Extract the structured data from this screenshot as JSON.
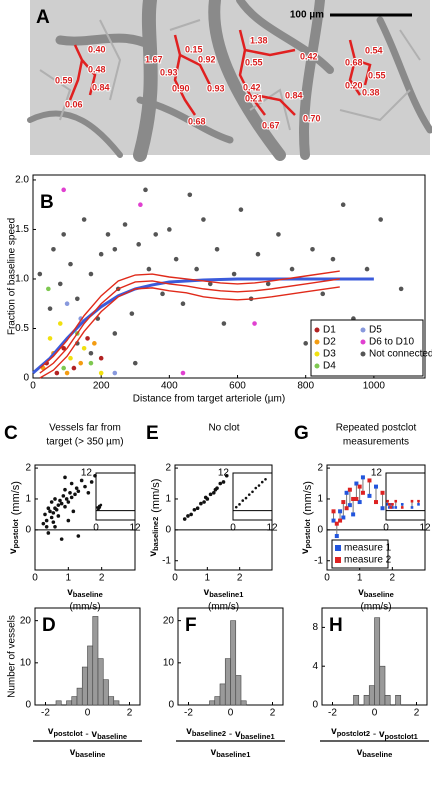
{
  "image_panel": {
    "panel": "A",
    "scale_bar": "100 µm",
    "annotations": [
      "0.40",
      "0.48",
      "0.59",
      "0.84",
      "0.06",
      "1.67",
      "0.15",
      "0.92",
      "0.93",
      "0.90",
      "0.93",
      "0.68",
      "1.38",
      "0.55",
      "0.42",
      "0.42",
      "0.21",
      "0.84",
      "0.67",
      "0.70",
      "0.54",
      "0.68",
      "0.55",
      "0.20",
      "0.38"
    ]
  },
  "chart_data": [
    {
      "type": "scatter",
      "panel": "B",
      "ylabel": "Fraction of baseline speed",
      "xlabel": "Distance from target arteriole (µm)",
      "xlim": [
        0,
        1150
      ],
      "ylim": [
        0,
        2.05
      ],
      "xticks": [
        0,
        200,
        400,
        600,
        800,
        1000
      ],
      "yticks": [
        0,
        0.5,
        {
          "value": 1,
          "label": "1.0"
        },
        1.5,
        {
          "value": 2,
          "label": "2.0"
        }
      ],
      "legend": "lower right",
      "series": [
        {
          "name": "D1",
          "color": "#b22222",
          "x": [
            40,
            70,
            90,
            120,
            160,
            200
          ],
          "values": [
            0.15,
            0.05,
            0.3,
            0.1,
            0.4,
            0.2
          ]
        },
        {
          "name": "D2",
          "color": "#f39c12",
          "x": [
            30,
            60,
            100,
            140,
            180
          ],
          "values": [
            0.1,
            0.25,
            0.05,
            0.15,
            0.35
          ]
        },
        {
          "name": "D3",
          "color": "#f1e00f",
          "x": [
            50,
            80,
            110,
            150,
            200
          ],
          "values": [
            0.4,
            0.55,
            0.2,
            0.3,
            0.05
          ]
        },
        {
          "name": "D4",
          "color": "#7ec850",
          "x": [
            45,
            90,
            130,
            170
          ],
          "values": [
            0.9,
            0.1,
            0.45,
            0.15
          ]
        },
        {
          "name": "D5",
          "color": "#8899dd",
          "x": [
            100,
            140,
            240
          ],
          "values": [
            0.75,
            0.6,
            0.05
          ]
        },
        {
          "name": "D6 to D10",
          "color": "#e040d0",
          "x": [
            90,
            315,
            440,
            650
          ],
          "values": [
            1.9,
            1.75,
            0.05,
            0.55
          ]
        },
        {
          "name": "Not connected",
          "color": "#555555",
          "x": [
            20,
            50,
            60,
            80,
            90,
            110,
            130,
            150,
            170,
            190,
            200,
            220,
            240,
            250,
            270,
            290,
            310,
            330,
            340,
            360,
            380,
            400,
            420,
            440,
            460,
            480,
            500,
            520,
            540,
            560,
            590,
            610,
            640,
            660,
            690,
            720,
            760,
            800,
            820,
            850,
            880,
            910,
            940,
            980,
            1020,
            1080,
            130,
            170,
            240,
            300
          ],
          "values": [
            1.05,
            0.7,
            1.3,
            0.95,
            1.45,
            1.15,
            0.8,
            1.6,
            1.05,
            0.6,
            1.25,
            1.45,
            1.3,
            0.9,
            1.55,
            0.65,
            1.35,
            1.9,
            1.1,
            1.45,
            0.85,
            1.5,
            1.2,
            0.75,
            1.85,
            1.1,
            1.6,
            0.95,
            1.3,
            0.55,
            1.05,
            1.7,
            0.8,
            1.25,
            0.95,
            1.45,
            1.1,
            0.35,
            1.3,
            0.85,
            1.2,
            1.75,
            0.6,
            1.1,
            1.6,
            0.9,
            0.35,
            0.25,
            0.45,
            0.15
          ]
        }
      ],
      "trend_lines": [
        {
          "color": "#3b5bdb",
          "x": [
            0,
            50,
            100,
            150,
            200,
            250,
            300,
            350,
            400,
            500,
            600,
            800,
            1000
          ],
          "values": [
            0.05,
            0.2,
            0.4,
            0.58,
            0.72,
            0.83,
            0.9,
            0.94,
            0.97,
            0.99,
            1.0,
            1.0,
            1.0
          ]
        },
        {
          "color": "#e02a1a",
          "x": [
            20,
            60,
            100,
            150,
            200,
            250,
            300,
            350,
            400,
            450,
            500,
            550,
            600,
            650,
            700,
            800,
            900
          ],
          "values": [
            0.05,
            0.15,
            0.3,
            0.55,
            0.75,
            0.9,
            0.97,
            0.98,
            0.95,
            0.93,
            0.9,
            0.88,
            0.87,
            0.88,
            0.9,
            0.95,
            1.0
          ]
        },
        {
          "color": "#e02a1a",
          "x": [
            20,
            60,
            100,
            150,
            200,
            250,
            300,
            350,
            400,
            450,
            500,
            550,
            600,
            650,
            700,
            800,
            900
          ],
          "values": [
            0.1,
            0.22,
            0.38,
            0.63,
            0.83,
            0.98,
            1.04,
            1.05,
            1.02,
            1.0,
            0.98,
            0.96,
            0.95,
            0.96,
            0.98,
            1.03,
            1.08
          ]
        },
        {
          "color": "#e02a1a",
          "x": [
            20,
            60,
            100,
            150,
            200,
            250,
            300,
            350,
            400,
            450,
            500,
            550,
            600,
            650,
            700,
            800,
            900
          ],
          "values": [
            0.0,
            0.08,
            0.22,
            0.47,
            0.67,
            0.82,
            0.9,
            0.91,
            0.88,
            0.86,
            0.82,
            0.8,
            0.79,
            0.8,
            0.82,
            0.87,
            0.92
          ]
        }
      ]
    },
    {
      "type": "scatter",
      "panel": "C",
      "title": [
        "Vessels far from",
        "target (> 350 µm)"
      ],
      "ylabel": {
        "parts": [
          {
            "text": "v",
            "sub": "postclot"
          }
        ],
        "unit": "(mm/s)"
      },
      "xlabel": {
        "parts": [
          {
            "text": "v",
            "sub": "baseline"
          }
        ],
        "unit": "(mm/s)"
      },
      "xlim": [
        0,
        3
      ],
      "ylim": [
        -1.3,
        2.1
      ],
      "xticks": [
        0,
        1,
        2
      ],
      "yticks": [
        0,
        1,
        2
      ],
      "series": [
        {
          "color": "#111111",
          "x": [
            0.25,
            0.3,
            0.35,
            0.4,
            0.45,
            0.5,
            0.5,
            0.55,
            0.6,
            0.6,
            0.65,
            0.7,
            0.7,
            0.75,
            0.8,
            0.85,
            0.9,
            0.9,
            0.95,
            1.0,
            1.05,
            1.1,
            1.1,
            1.2,
            1.25,
            1.3,
            1.4,
            1.5,
            1.6,
            1.7,
            1.8,
            0.4,
            0.6,
            0.8,
            1.0,
            1.3,
            0.35,
            0.55,
            0.9,
            1.15
          ],
          "values": [
            0.2,
            0.5,
            0.3,
            0.7,
            0.6,
            0.4,
            0.9,
            0.55,
            0.7,
            1.0,
            0.65,
            0.8,
            0.45,
            0.95,
            0.85,
            1.1,
            0.75,
            1.3,
            1.0,
            0.9,
            1.2,
            1.05,
            1.5,
            1.15,
            1.35,
            1.25,
            1.6,
            1.4,
            1.2,
            1.55,
            1.75,
            -0.1,
            0.1,
            -0.3,
            0.3,
            -0.2,
            0.1,
            0.25,
            1.7,
            0.6
          ]
        }
      ],
      "inset": {
        "xlim": [
          0,
          12
        ],
        "ylim": [
          -3,
          12
        ],
        "xticks": [
          0,
          12
        ],
        "yticks": [
          12
        ],
        "series": [
          {
            "color": "#111111",
            "x": [
              0.5,
              0.8,
              1,
              1.2,
              1.5,
              0.7,
              1.1
            ],
            "values": [
              1,
              0.6,
              1.5,
              1.2,
              1.8,
              0.3,
              0.9
            ]
          }
        ]
      }
    },
    {
      "type": "scatter",
      "panel": "E",
      "title": [
        "No clot"
      ],
      "ylabel": {
        "parts": [
          {
            "text": "v",
            "sub": "baseline2"
          }
        ],
        "unit": "(mm/s)"
      },
      "xlabel": {
        "parts": [
          {
            "text": "v",
            "sub": "baseline1"
          }
        ],
        "unit": "(mm/s)"
      },
      "xlim": [
        0,
        3
      ],
      "ylim": [
        -1.3,
        2.1
      ],
      "xticks": [
        0,
        1,
        2
      ],
      "yticks": [
        -1,
        0,
        1,
        2
      ],
      "series": [
        {
          "color": "#111111",
          "x": [
            0.3,
            0.5,
            0.6,
            0.7,
            0.8,
            0.9,
            1.0,
            1.1,
            1.2,
            1.3,
            1.4,
            1.5,
            1.6,
            0.4,
            0.95,
            1.25
          ],
          "values": [
            0.35,
            0.5,
            0.65,
            0.7,
            0.85,
            0.9,
            1.0,
            1.15,
            1.2,
            1.35,
            1.5,
            1.55,
            1.75,
            0.45,
            1.05,
            1.3
          ]
        }
      ],
      "inset": {
        "xlim": [
          0,
          12
        ],
        "ylim": [
          -3,
          12
        ],
        "xticks": [
          0,
          12
        ],
        "yticks": [
          12
        ],
        "series": [
          {
            "color": "#111111",
            "x": [
              1,
              2,
              3,
              4,
              5,
              6,
              7,
              8,
              9,
              10
            ],
            "values": [
              1.1,
              2,
              3.2,
              4,
              5.1,
              6,
              7.2,
              8,
              9.1,
              10
            ]
          }
        ]
      }
    },
    {
      "type": "paired",
      "panel": "G",
      "title": [
        "Repeated postclot",
        "measurements"
      ],
      "ylabel": {
        "parts": [
          {
            "text": "v",
            "sub": "postclot"
          }
        ],
        "unit": "(mm/s)"
      },
      "xlabel": {
        "parts": [
          {
            "text": "v",
            "sub": "baseline"
          }
        ],
        "unit": "(mm/s)"
      },
      "xlim": [
        0,
        3
      ],
      "ylim": [
        -1.3,
        2.1
      ],
      "xticks": [
        0,
        1,
        2
      ],
      "yticks": [
        -1,
        0,
        1,
        2
      ],
      "legend": "lower left",
      "x": [
        0.2,
        0.3,
        0.4,
        0.5,
        0.6,
        0.7,
        0.8,
        0.9,
        1.0,
        1.1,
        1.3,
        1.5,
        1.7
      ],
      "series": [
        {
          "name": "measure 1",
          "color": "#2255dd",
          "values": [
            0.3,
            -0.2,
            0.6,
            0.4,
            1.2,
            0.8,
            0.5,
            1.5,
            0.9,
            1.7,
            1.1,
            1.4,
            0.7
          ]
        },
        {
          "name": "measure 2",
          "color": "#dd2222",
          "values": [
            0.6,
            0.2,
            0.3,
            0.9,
            0.7,
            1.3,
            1.0,
            1.0,
            1.4,
            1.2,
            1.6,
            0.9,
            1.2
          ]
        }
      ],
      "inset": {
        "xlim": [
          0,
          12
        ],
        "ylim": [
          -3,
          12
        ],
        "xticks": [
          0,
          12
        ],
        "yticks": [
          12
        ],
        "x": [
          0.5,
          1,
          1.5,
          2,
          3,
          5,
          8,
          10
        ],
        "series": [
          {
            "color": "#2255dd",
            "values": [
              2,
              1,
              2,
              1,
              1,
              2,
              1,
              2
            ]
          },
          {
            "color": "#dd2222",
            "values": [
              3,
              2,
              1,
              2,
              3,
              1,
              3,
              3
            ]
          }
        ]
      }
    },
    {
      "type": "histogram",
      "panel": "D",
      "ylabel": "Number of vessels",
      "xlabel": {
        "numerator": [
          {
            "text": "v",
            "sub": "postclot"
          },
          {
            "text": " - "
          },
          {
            "text": "v",
            "sub": "baseline"
          }
        ],
        "denominator": [
          {
            "text": "v",
            "sub": "baseline"
          }
        ]
      },
      "xlim": [
        -2.5,
        2.5
      ],
      "ylim": [
        0,
        23
      ],
      "xticks": [
        -2,
        0,
        2
      ],
      "yticks": [
        0,
        10,
        20
      ],
      "bins": [
        -1.5,
        -1.25,
        -1,
        -0.75,
        -0.5,
        -0.25,
        0,
        0.25,
        0.5,
        0.75,
        1,
        1.25,
        1.5
      ],
      "values": [
        1,
        0,
        1,
        2,
        4,
        9,
        14,
        21,
        11,
        6,
        2,
        1
      ]
    },
    {
      "type": "histogram",
      "panel": "F",
      "xlabel": {
        "numerator": [
          {
            "text": "v",
            "sub": "baseline2"
          },
          {
            "text": " - "
          },
          {
            "text": "v",
            "sub": "baseline1"
          }
        ],
        "denominator": [
          {
            "text": "v",
            "sub": "baseline1"
          }
        ]
      },
      "xlim": [
        -2.5,
        2.5
      ],
      "ylim": [
        0,
        23
      ],
      "xticks": [
        -2,
        0,
        2
      ],
      "yticks": [
        0,
        10,
        20
      ],
      "bins": [
        -1,
        -0.75,
        -0.5,
        -0.25,
        0,
        0.25,
        0.5,
        0.75
      ],
      "values": [
        1,
        2,
        5,
        11,
        20,
        7,
        1
      ]
    },
    {
      "type": "histogram",
      "panel": "H",
      "xlabel": {
        "numerator": [
          {
            "text": "v",
            "sub": "postclot2"
          },
          {
            "text": " - "
          },
          {
            "text": "v",
            "sub": "postclot1"
          }
        ],
        "denominator": [
          {
            "text": "v",
            "sub": "baseline"
          }
        ]
      },
      "xlim": [
        -2.5,
        2.5
      ],
      "ylim": [
        0,
        10
      ],
      "xticks": [
        -2,
        0,
        2
      ],
      "yticks": [
        0,
        4,
        8
      ],
      "bins": [
        -1,
        -0.75,
        -0.5,
        -0.25,
        0,
        0.25,
        0.5,
        0.75,
        1,
        1.25
      ],
      "values": [
        1,
        0,
        1,
        2,
        9,
        4,
        1,
        0,
        1
      ]
    }
  ]
}
